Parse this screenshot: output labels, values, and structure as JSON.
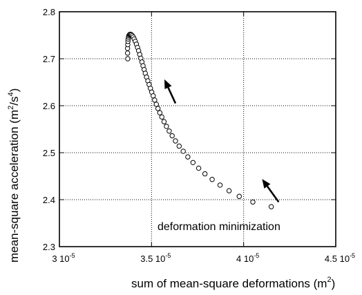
{
  "chart_data": {
    "type": "scatter",
    "xlabel": "sum of mean-square deformations (m",
    "xlabel_exp": "2",
    "xlabel_close": ")",
    "ylabel": "mean-square acceleration (m",
    "ylabel_mid": "/s",
    "ylabel_exp1": "2",
    "ylabel_exp2": "4",
    "ylabel_close": ")",
    "xlim": [
      3e-05,
      4.5e-05
    ],
    "ylim": [
      2.3,
      2.8
    ],
    "grid": true,
    "x_ticks": [
      {
        "value": 3e-05,
        "mant": "3",
        "exp": "-5"
      },
      {
        "value": 3.5e-05,
        "mant": "3.5",
        "exp": "-5"
      },
      {
        "value": 4e-05,
        "mant": "4",
        "exp": "-5"
      },
      {
        "value": 4.5e-05,
        "mant": "4.5",
        "exp": "-5"
      }
    ],
    "y_ticks": [
      "2.3",
      "2.4",
      "2.5",
      "2.6",
      "2.7",
      "2.8"
    ],
    "annotation": "deformation minimization",
    "arrows": [
      {
        "from": [
          3.63e-05,
          2.605
        ],
        "to": [
          3.57e-05,
          2.656
        ]
      },
      {
        "from": [
          4.19e-05,
          2.395
        ],
        "to": [
          4.1e-05,
          2.444
        ]
      }
    ],
    "series": [
      {
        "marker": "open-circle",
        "x": [
          3.371e-05,
          3.37e-05,
          3.37e-05,
          3.371e-05,
          3.372e-05,
          3.373e-05,
          3.375e-05,
          3.377e-05,
          3.38e-05,
          3.383e-05,
          3.387e-05,
          3.391e-05,
          3.396e-05,
          3.401e-05,
          3.406e-05,
          3.412e-05,
          3.418e-05,
          3.424e-05,
          3.43e-05,
          3.436e-05,
          3.442e-05,
          3.448e-05,
          3.454e-05,
          3.46e-05,
          3.466e-05,
          3.473e-05,
          3.48e-05,
          3.487e-05,
          3.494e-05,
          3.501e-05,
          3.509e-05,
          3.517e-05,
          3.526e-05,
          3.535e-05,
          3.545e-05,
          3.556e-05,
          3.568e-05,
          3.581e-05,
          3.596e-05,
          3.612e-05,
          3.63e-05,
          3.65e-05,
          3.672e-05,
          3.697e-05,
          3.725e-05,
          3.756e-05,
          3.79e-05,
          3.829e-05,
          3.872e-05,
          3.921e-05,
          3.976e-05,
          4.05e-05,
          4.15e-05
        ],
        "y": [
          2.7,
          2.712,
          2.722,
          2.73,
          2.737,
          2.742,
          2.746,
          2.749,
          2.751,
          2.752,
          2.752,
          2.751,
          2.749,
          2.746,
          2.742,
          2.737,
          2.731,
          2.724,
          2.717,
          2.709,
          2.701,
          2.693,
          2.685,
          2.677,
          2.669,
          2.661,
          2.653,
          2.645,
          2.637,
          2.629,
          2.621,
          2.612,
          2.603,
          2.594,
          2.585,
          2.576,
          2.566,
          2.556,
          2.546,
          2.536,
          2.525,
          2.514,
          2.503,
          2.491,
          2.479,
          2.467,
          2.455,
          2.443,
          2.431,
          2.419,
          2.407,
          2.395,
          2.385
        ]
      }
    ]
  }
}
